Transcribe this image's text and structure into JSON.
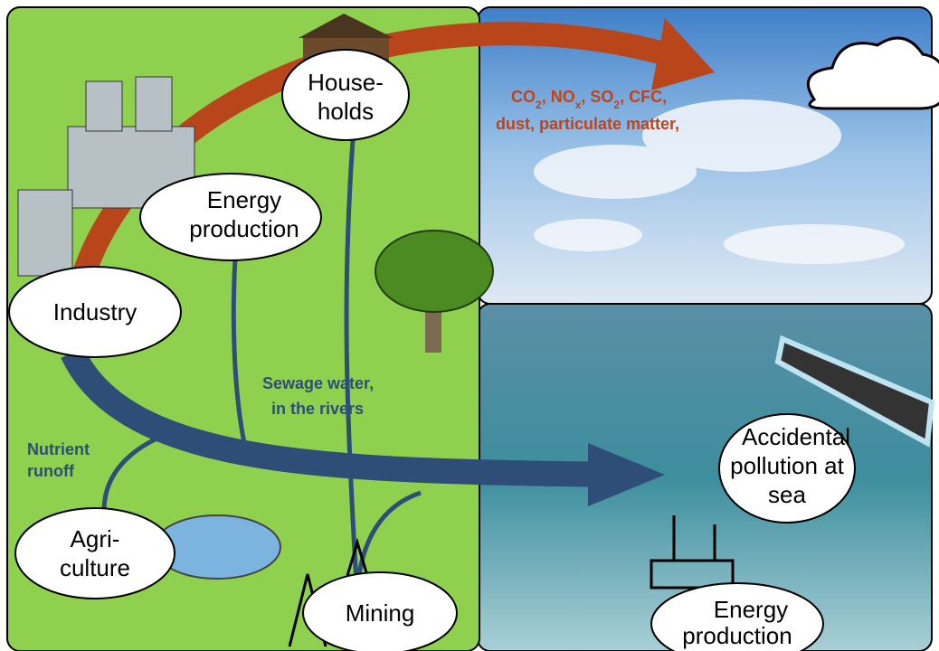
{
  "nodes": [
    {
      "lines": [
        "House-",
        "holds"
      ]
    },
    {
      "lines": [
        "Energy",
        "production"
      ]
    },
    {
      "lines": [
        "Industry"
      ]
    },
    {
      "lines": [
        "Agri-",
        "culture"
      ]
    },
    {
      "lines": [
        "Mining"
      ]
    },
    {
      "lines": [
        "Accidental",
        "pollution at",
        "sea"
      ]
    },
    {
      "lines": [
        "Energy",
        "production"
      ]
    }
  ],
  "emissions": {
    "parts": [
      {
        "text": "CO",
        "sub": "2"
      },
      {
        "text": ", NO",
        "sub": "x"
      },
      {
        "text": ", SO",
        "sub": "2"
      },
      {
        "text": ", CFC,"
      }
    ],
    "line2": "dust, particulate matter,"
  },
  "sewage": [
    "Sewage water,",
    "in the rivers"
  ],
  "nutrient": [
    "Nutrient",
    "runoff"
  ]
}
